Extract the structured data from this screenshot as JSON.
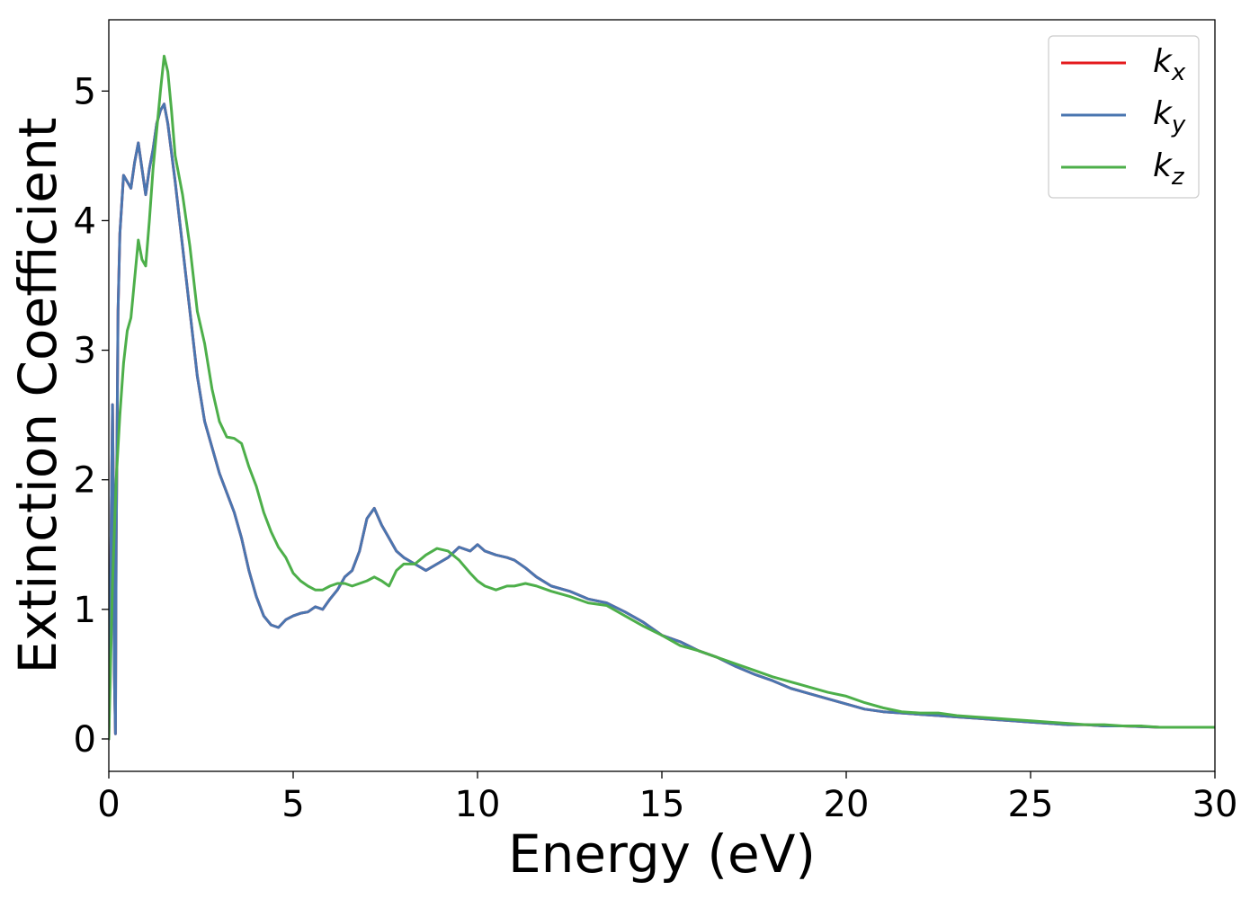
{
  "chart_data": {
    "type": "line",
    "xlabel": "Energy (eV)",
    "ylabel": "Extinction Coefficient",
    "xlim": [
      0,
      30
    ],
    "ylim": [
      -0.25,
      5.55
    ],
    "xticks": [
      0,
      5,
      10,
      15,
      20,
      25,
      30
    ],
    "xtick_labels": [
      "0",
      "5",
      "10",
      "15",
      "20",
      "25",
      "30"
    ],
    "yticks": [
      0,
      1,
      2,
      3,
      4,
      5
    ],
    "ytick_labels": [
      "0",
      "1",
      "2",
      "3",
      "4",
      "5"
    ],
    "grid": false,
    "legend_position": "top-right",
    "series": [
      {
        "name": "k",
        "subscript": "x",
        "color": "#e41a1c",
        "x": [
          0.0,
          0.1,
          0.12,
          0.15,
          0.18,
          0.2,
          0.25,
          0.3,
          0.4,
          0.5,
          0.6,
          0.7,
          0.8,
          0.9,
          1.0,
          1.1,
          1.2,
          1.3,
          1.4,
          1.5,
          1.6,
          1.8,
          2.0,
          2.2,
          2.4,
          2.6,
          2.8,
          3.0,
          3.2,
          3.4,
          3.6,
          3.8,
          4.0,
          4.2,
          4.4,
          4.6,
          4.8,
          5.0,
          5.2,
          5.4,
          5.6,
          5.8,
          6.0,
          6.2,
          6.4,
          6.6,
          6.8,
          7.0,
          7.2,
          7.4,
          7.6,
          7.8,
          8.0,
          8.3,
          8.6,
          8.9,
          9.2,
          9.5,
          9.8,
          10.0,
          10.2,
          10.5,
          10.8,
          11.0,
          11.3,
          11.6,
          12.0,
          12.5,
          13.0,
          13.5,
          14.0,
          14.5,
          15.0,
          15.5,
          16.0,
          16.5,
          17.0,
          17.5,
          18.0,
          18.5,
          19.0,
          19.5,
          20.0,
          20.5,
          21.0,
          21.5,
          22.0,
          22.5,
          23.0,
          23.5,
          24.0,
          24.5,
          25.0,
          25.5,
          26.0,
          26.5,
          27.0,
          27.5,
          28.0,
          28.5,
          29.0,
          29.5,
          30.0
        ],
        "values": [
          0.0,
          2.58,
          2.0,
          0.5,
          0.04,
          1.5,
          3.3,
          3.9,
          4.35,
          4.3,
          4.25,
          4.45,
          4.6,
          4.4,
          4.2,
          4.4,
          4.55,
          4.75,
          4.85,
          4.9,
          4.75,
          4.3,
          3.8,
          3.3,
          2.8,
          2.45,
          2.25,
          2.05,
          1.9,
          1.75,
          1.55,
          1.3,
          1.1,
          0.95,
          0.88,
          0.86,
          0.92,
          0.95,
          0.97,
          0.98,
          1.02,
          1.0,
          1.08,
          1.15,
          1.25,
          1.3,
          1.45,
          1.7,
          1.78,
          1.65,
          1.55,
          1.45,
          1.4,
          1.35,
          1.3,
          1.35,
          1.4,
          1.48,
          1.45,
          1.5,
          1.45,
          1.42,
          1.4,
          1.38,
          1.32,
          1.25,
          1.18,
          1.14,
          1.08,
          1.05,
          0.98,
          0.9,
          0.8,
          0.75,
          0.68,
          0.63,
          0.56,
          0.5,
          0.45,
          0.39,
          0.35,
          0.31,
          0.27,
          0.23,
          0.21,
          0.2,
          0.19,
          0.18,
          0.17,
          0.16,
          0.15,
          0.14,
          0.13,
          0.12,
          0.11,
          0.11,
          0.1,
          0.1,
          0.095,
          0.09,
          0.09,
          0.09,
          0.09
        ]
      },
      {
        "name": "k",
        "subscript": "y",
        "color": "#4a76b0",
        "x": [
          0.0,
          0.1,
          0.12,
          0.15,
          0.18,
          0.2,
          0.25,
          0.3,
          0.4,
          0.5,
          0.6,
          0.7,
          0.8,
          0.9,
          1.0,
          1.1,
          1.2,
          1.3,
          1.4,
          1.5,
          1.6,
          1.8,
          2.0,
          2.2,
          2.4,
          2.6,
          2.8,
          3.0,
          3.2,
          3.4,
          3.6,
          3.8,
          4.0,
          4.2,
          4.4,
          4.6,
          4.8,
          5.0,
          5.2,
          5.4,
          5.6,
          5.8,
          6.0,
          6.2,
          6.4,
          6.6,
          6.8,
          7.0,
          7.2,
          7.4,
          7.6,
          7.8,
          8.0,
          8.3,
          8.6,
          8.9,
          9.2,
          9.5,
          9.8,
          10.0,
          10.2,
          10.5,
          10.8,
          11.0,
          11.3,
          11.6,
          12.0,
          12.5,
          13.0,
          13.5,
          14.0,
          14.5,
          15.0,
          15.5,
          16.0,
          16.5,
          17.0,
          17.5,
          18.0,
          18.5,
          19.0,
          19.5,
          20.0,
          20.5,
          21.0,
          21.5,
          22.0,
          22.5,
          23.0,
          23.5,
          24.0,
          24.5,
          25.0,
          25.5,
          26.0,
          26.5,
          27.0,
          27.5,
          28.0,
          28.5,
          29.0,
          29.5,
          30.0
        ],
        "values": [
          0.0,
          2.58,
          2.0,
          0.5,
          0.04,
          1.5,
          3.3,
          3.9,
          4.35,
          4.3,
          4.25,
          4.45,
          4.6,
          4.4,
          4.2,
          4.4,
          4.55,
          4.75,
          4.85,
          4.9,
          4.75,
          4.3,
          3.8,
          3.3,
          2.8,
          2.45,
          2.25,
          2.05,
          1.9,
          1.75,
          1.55,
          1.3,
          1.1,
          0.95,
          0.88,
          0.86,
          0.92,
          0.95,
          0.97,
          0.98,
          1.02,
          1.0,
          1.08,
          1.15,
          1.25,
          1.3,
          1.45,
          1.7,
          1.78,
          1.65,
          1.55,
          1.45,
          1.4,
          1.35,
          1.3,
          1.35,
          1.4,
          1.48,
          1.45,
          1.5,
          1.45,
          1.42,
          1.4,
          1.38,
          1.32,
          1.25,
          1.18,
          1.14,
          1.08,
          1.05,
          0.98,
          0.9,
          0.8,
          0.75,
          0.68,
          0.63,
          0.56,
          0.5,
          0.45,
          0.39,
          0.35,
          0.31,
          0.27,
          0.23,
          0.21,
          0.2,
          0.19,
          0.18,
          0.17,
          0.16,
          0.15,
          0.14,
          0.13,
          0.12,
          0.11,
          0.11,
          0.1,
          0.1,
          0.095,
          0.09,
          0.09,
          0.09,
          0.09
        ]
      },
      {
        "name": "k",
        "subscript": "z",
        "color": "#4daf4a",
        "x": [
          0.0,
          0.1,
          0.2,
          0.3,
          0.4,
          0.5,
          0.6,
          0.7,
          0.8,
          0.9,
          1.0,
          1.1,
          1.2,
          1.3,
          1.4,
          1.5,
          1.6,
          1.7,
          1.8,
          2.0,
          2.2,
          2.4,
          2.6,
          2.8,
          3.0,
          3.2,
          3.4,
          3.6,
          3.8,
          4.0,
          4.2,
          4.4,
          4.6,
          4.8,
          5.0,
          5.2,
          5.4,
          5.6,
          5.8,
          6.0,
          6.2,
          6.4,
          6.6,
          6.8,
          7.0,
          7.2,
          7.4,
          7.6,
          7.8,
          8.0,
          8.3,
          8.6,
          8.9,
          9.2,
          9.5,
          9.8,
          10.0,
          10.2,
          10.5,
          10.8,
          11.0,
          11.3,
          11.6,
          12.0,
          12.5,
          13.0,
          13.5,
          14.0,
          14.5,
          15.0,
          15.5,
          16.0,
          16.5,
          17.0,
          17.5,
          18.0,
          18.5,
          19.0,
          19.5,
          20.0,
          20.5,
          21.0,
          21.5,
          22.0,
          22.5,
          23.0,
          23.5,
          24.0,
          24.5,
          25.0,
          25.5,
          26.0,
          26.5,
          27.0,
          27.5,
          28.0,
          28.5,
          29.0,
          29.5,
          30.0
        ],
        "values": [
          0.0,
          1.2,
          2.0,
          2.5,
          2.9,
          3.15,
          3.25,
          3.55,
          3.85,
          3.7,
          3.65,
          4.0,
          4.4,
          4.7,
          5.0,
          5.27,
          5.15,
          4.85,
          4.5,
          4.2,
          3.8,
          3.3,
          3.05,
          2.7,
          2.45,
          2.33,
          2.32,
          2.28,
          2.1,
          1.95,
          1.75,
          1.6,
          1.48,
          1.4,
          1.28,
          1.22,
          1.18,
          1.15,
          1.15,
          1.18,
          1.2,
          1.2,
          1.18,
          1.2,
          1.22,
          1.25,
          1.22,
          1.18,
          1.3,
          1.35,
          1.35,
          1.42,
          1.47,
          1.45,
          1.38,
          1.28,
          1.22,
          1.18,
          1.15,
          1.18,
          1.18,
          1.2,
          1.18,
          1.14,
          1.1,
          1.05,
          1.03,
          0.95,
          0.87,
          0.8,
          0.72,
          0.68,
          0.63,
          0.58,
          0.53,
          0.48,
          0.44,
          0.4,
          0.36,
          0.33,
          0.28,
          0.24,
          0.21,
          0.2,
          0.2,
          0.18,
          0.17,
          0.16,
          0.15,
          0.14,
          0.13,
          0.12,
          0.11,
          0.11,
          0.1,
          0.1,
          0.09,
          0.09,
          0.09,
          0.09
        ]
      }
    ]
  }
}
